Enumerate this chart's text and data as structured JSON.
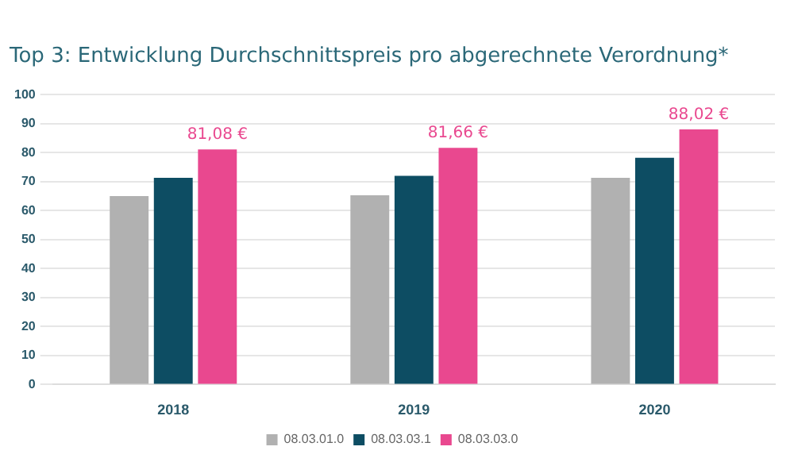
{
  "chart_data": {
    "type": "bar",
    "title": "Top 3: Entwicklung Durchschnittspreis pro abgerechnete Verordnung*",
    "categories": [
      "2018",
      "2019",
      "2020"
    ],
    "series": [
      {
        "name": "08.03.01.0",
        "color": "#b1b1b1",
        "values": [
          65,
          65.3,
          71.3
        ]
      },
      {
        "name": "08.03.03.1",
        "color": "#0d4d63",
        "values": [
          71.3,
          72,
          78.2
        ]
      },
      {
        "name": "08.03.03.0",
        "color": "#e9488f",
        "values": [
          81.08,
          81.66,
          88.02
        ],
        "value_labels": [
          "81,08 €",
          "81,66 €",
          "88,02 €"
        ]
      }
    ],
    "ylim": [
      0,
      100
    ],
    "yticks": [
      0,
      10,
      20,
      30,
      40,
      50,
      60,
      70,
      80,
      90,
      100
    ],
    "grid": "y",
    "legend": "bottom"
  }
}
